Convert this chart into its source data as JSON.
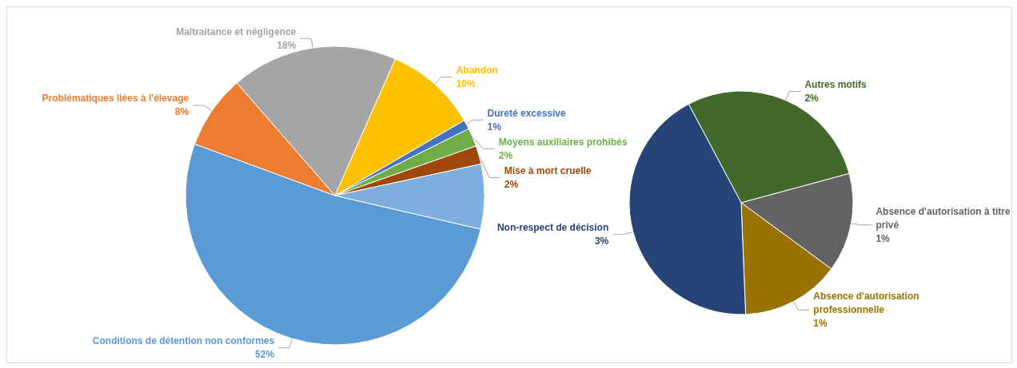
{
  "chart_data": [
    {
      "type": "pie",
      "categories": [
        "Conditions de détention non conformes",
        "Problématiques liées à l'élevage",
        "Maltraitance et négligence",
        "Abandon",
        "Dureté excessive",
        "Moyens auxiliaires prohibés",
        "Mise à mort cruelle",
        null
      ],
      "values": [
        52,
        8,
        18,
        10,
        1,
        2,
        2,
        7
      ],
      "value_labels": [
        "52%",
        "8%",
        "18%",
        "10%",
        "1%",
        "2%",
        "2%",
        null
      ],
      "colors": [
        "#5b9bd5",
        "#ed7d31",
        "#a5a5a5",
        "#ffc000",
        "#4472c4",
        "#70ad47",
        "#9e480e",
        "#7cafdd"
      ]
    },
    {
      "type": "pie",
      "categories": [
        "Autres motifs",
        "Absence d'autorisation à titre privé",
        "Absence d'autorisation professionnelle",
        "Non-respect de décision"
      ],
      "values": [
        2,
        1,
        1,
        3
      ],
      "value_labels": [
        "2%",
        "1%",
        "1%",
        "3%"
      ],
      "colors": [
        "#43682b",
        "#636363",
        "#997300",
        "#264478"
      ]
    }
  ]
}
